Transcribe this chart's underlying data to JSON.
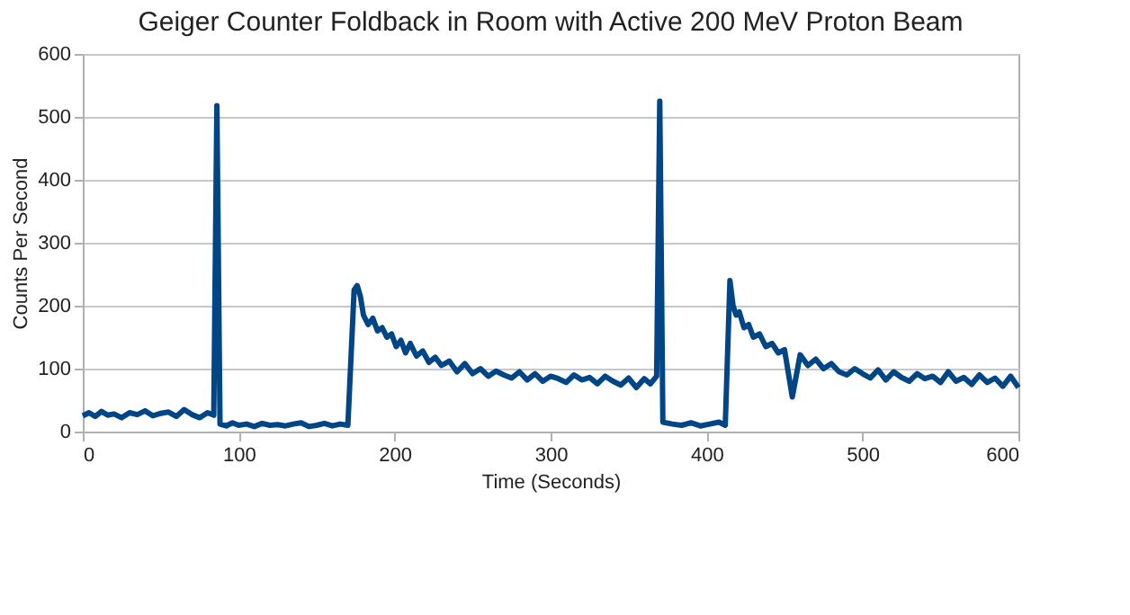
{
  "chart_data": {
    "type": "line",
    "title": "Geiger Counter Foldback in Room with Active 200 MeV Proton Beam",
    "xlabel": "Time (Seconds)",
    "ylabel": "Counts Per Second",
    "x": [
      0,
      4,
      8,
      12,
      16,
      20,
      25,
      30,
      35,
      40,
      45,
      50,
      55,
      60,
      65,
      70,
      75,
      80,
      84,
      86,
      88,
      92,
      96,
      100,
      105,
      110,
      115,
      120,
      125,
      130,
      135,
      140,
      145,
      150,
      155,
      160,
      165,
      170,
      174,
      176,
      178,
      180,
      183,
      186,
      189,
      192,
      195,
      198,
      201,
      204,
      207,
      210,
      214,
      218,
      222,
      226,
      230,
      235,
      240,
      245,
      250,
      255,
      260,
      265,
      270,
      275,
      280,
      285,
      290,
      295,
      300,
      305,
      310,
      315,
      320,
      325,
      330,
      335,
      340,
      345,
      350,
      355,
      360,
      364,
      368,
      370,
      372,
      378,
      384,
      390,
      396,
      402,
      408,
      412,
      415,
      417,
      419,
      421,
      424,
      427,
      430,
      434,
      438,
      442,
      446,
      450,
      455,
      460,
      465,
      470,
      475,
      480,
      485,
      490,
      495,
      500,
      505,
      510,
      515,
      520,
      525,
      530,
      535,
      540,
      545,
      550,
      555,
      560,
      565,
      570,
      575,
      580,
      585,
      590,
      595,
      600
    ],
    "series": [
      {
        "color": "#004586",
        "values": [
          25,
          30,
          24,
          32,
          26,
          28,
          22,
          30,
          27,
          33,
          25,
          29,
          31,
          24,
          35,
          27,
          22,
          30,
          26,
          518,
          12,
          9,
          14,
          10,
          12,
          8,
          13,
          10,
          11,
          9,
          12,
          14,
          8,
          10,
          13,
          9,
          12,
          10,
          225,
          232,
          215,
          185,
          170,
          180,
          160,
          165,
          150,
          155,
          135,
          145,
          125,
          140,
          120,
          128,
          110,
          118,
          105,
          112,
          95,
          108,
          92,
          100,
          88,
          96,
          90,
          85,
          95,
          82,
          92,
          80,
          88,
          84,
          78,
          90,
          82,
          86,
          76,
          88,
          80,
          74,
          85,
          70,
          84,
          76,
          88,
          525,
          15,
          12,
          10,
          14,
          9,
          12,
          15,
          10,
          240,
          200,
          185,
          190,
          165,
          170,
          150,
          155,
          135,
          140,
          125,
          130,
          55,
          122,
          105,
          115,
          100,
          108,
          95,
          90,
          100,
          92,
          85,
          98,
          82,
          95,
          86,
          80,
          92,
          84,
          88,
          78,
          95,
          80,
          86,
          75,
          90,
          78,
          85,
          72,
          88,
          70
        ]
      }
    ],
    "xlim": [
      0,
      600
    ],
    "ylim": [
      0,
      600
    ],
    "xticks": [
      0,
      100,
      200,
      300,
      400,
      500,
      600
    ],
    "yticks": [
      0,
      100,
      200,
      300,
      400,
      500,
      600
    ],
    "grid": "y",
    "marker": "none",
    "line_style": "solid"
  }
}
